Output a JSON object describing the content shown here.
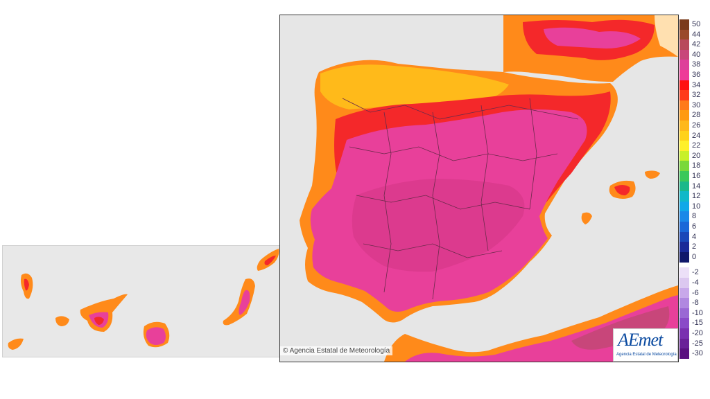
{
  "legend": {
    "items": [
      {
        "label": "50",
        "color": "#7a3a1a"
      },
      {
        "label": "44",
        "color": "#9a4a2a"
      },
      {
        "label": "42",
        "color": "#b84a5a"
      },
      {
        "label": "40",
        "color": "#c8467a"
      },
      {
        "label": "38",
        "color": "#de3f9a"
      },
      {
        "label": "36",
        "color": "#ee3a98"
      },
      {
        "label": "34",
        "color": "#ff1010"
      },
      {
        "label": "32",
        "color": "#ff3a1a"
      },
      {
        "label": "30",
        "color": "#ff7a1a"
      },
      {
        "label": "28",
        "color": "#ff9a10"
      },
      {
        "label": "26",
        "color": "#ffb81a"
      },
      {
        "label": "24",
        "color": "#ffd21a"
      },
      {
        "label": "22",
        "color": "#fff02a"
      },
      {
        "label": "20",
        "color": "#c8f028"
      },
      {
        "label": "18",
        "color": "#7ad83a"
      },
      {
        "label": "16",
        "color": "#3ac85a"
      },
      {
        "label": "14",
        "color": "#1ab88a"
      },
      {
        "label": "12",
        "color": "#10b8c8"
      },
      {
        "label": "10",
        "color": "#10a8e8"
      },
      {
        "label": "8",
        "color": "#1a88e8"
      },
      {
        "label": "6",
        "color": "#1a68d8"
      },
      {
        "label": "4",
        "color": "#1a48b8"
      },
      {
        "label": "2",
        "color": "#1a2a98"
      },
      {
        "label": "0",
        "color": "#10186a"
      },
      {
        "label": "-2",
        "color": "#ece0f8"
      },
      {
        "label": "-4",
        "color": "#dcc8f0"
      },
      {
        "label": "-6",
        "color": "#c8a8ea"
      },
      {
        "label": "-8",
        "color": "#b088e0"
      },
      {
        "label": "-10",
        "color": "#9a68d4"
      },
      {
        "label": "-15",
        "color": "#8a4ac8"
      },
      {
        "label": "-20",
        "color": "#7a30b0"
      },
      {
        "label": "-25",
        "color": "#6a2098"
      },
      {
        "label": "-30",
        "color": "#5a1080"
      }
    ]
  },
  "copyright": "© Agencia Estatal de Meteorología",
  "logo": {
    "main": "AEmet",
    "sub": "Agencia Estatal de Meteorología"
  },
  "map_colors": {
    "sea": "#e6e6e6",
    "hot_magenta": "#e8409a",
    "red": "#f4282a",
    "orange": "#ff8a1a",
    "yellow_orange": "#ffba1a",
    "border": "#6a2a4a"
  }
}
